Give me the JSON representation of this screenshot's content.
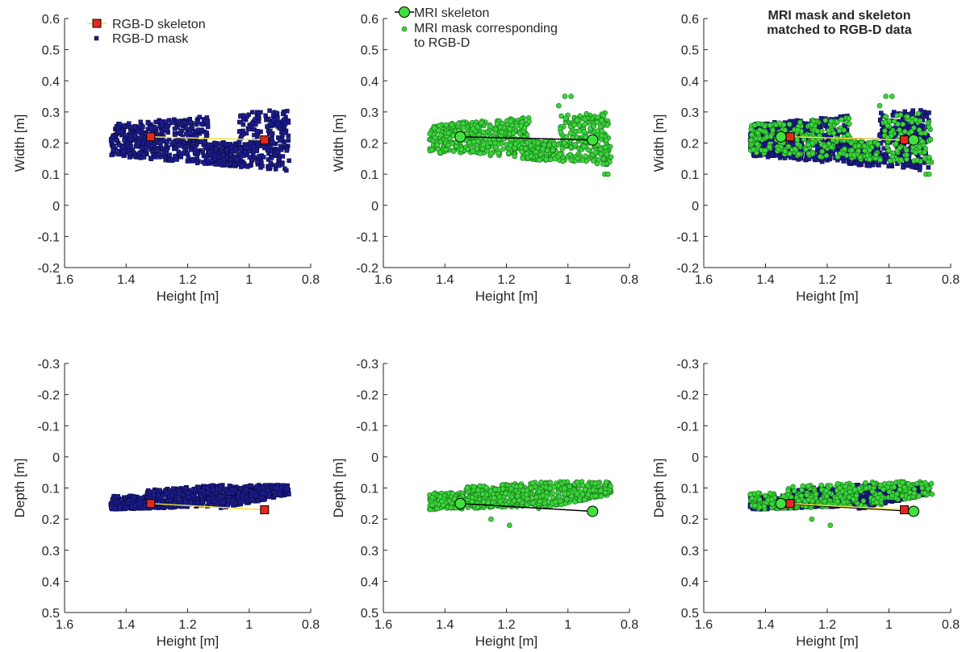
{
  "colors": {
    "mask_rgbd": "#1c1c8e",
    "mask_rgbd_edge": "#0b0b3a",
    "mask_mri": "#39d63a",
    "mask_mri_edge": "#1b6b1b",
    "skeleton_rgbd_marker": "#e8271c",
    "skeleton_rgbd_line": "#f2e23a",
    "skeleton_mri_marker": "#3ee23e",
    "skeleton_mri_line": "#000000"
  },
  "chart_data": [
    {
      "type": "scatter",
      "title": "",
      "xlabel": "Height [m]",
      "ylabel": "Width [m]",
      "xlim": [
        1.6,
        0.8
      ],
      "ylim": [
        0.6,
        -0.2
      ],
      "xticks": [
        "1.6",
        "1.4",
        "1.2",
        "1",
        "0.8"
      ],
      "yticks": [
        "-0.2",
        "-0.1",
        "0",
        "0.1",
        "0.2",
        "0.3",
        "0.4",
        "0.5",
        "0.6"
      ],
      "legend": {
        "position": "top-left",
        "entries": [
          "RGB-D skeleton",
          "RGB-D mask"
        ]
      },
      "series": [
        {
          "name": "RGB-D mask",
          "kind": "rgbd_mask",
          "region": {
            "x_range": [
              1.45,
              0.87
            ],
            "top_left": 0.16,
            "top_right": 0.11,
            "bottom_left": 0.26,
            "bottom_right": 0.31
          }
        },
        {
          "name": "RGB-D skeleton",
          "kind": "rgbd_skeleton",
          "x": [
            1.32,
            0.95
          ],
          "y": [
            0.22,
            0.21
          ]
        }
      ]
    },
    {
      "type": "scatter",
      "title": "",
      "xlabel": "Height [m]",
      "ylabel": "Width [m]",
      "xlim": [
        1.6,
        0.8
      ],
      "ylim": [
        0.6,
        -0.2
      ],
      "xticks": [
        "1.6",
        "1.4",
        "1.2",
        "1",
        "0.8"
      ],
      "yticks": [
        "-0.2",
        "-0.1",
        "0",
        "0.1",
        "0.2",
        "0.3",
        "0.4",
        "0.5",
        "0.6"
      ],
      "legend": {
        "position": "top-left",
        "entries": [
          "MRI skeleton",
          "MRI mask corresponding to RGB-D"
        ]
      },
      "series": [
        {
          "name": "MRI mask corresponding to RGB-D",
          "kind": "mri_mask",
          "region": {
            "x_range": [
              1.45,
              0.86
            ],
            "top_left": 0.17,
            "top_right": 0.13,
            "bottom_left": 0.26,
            "bottom_right": 0.3
          }
        },
        {
          "name": "MRI skeleton",
          "kind": "mri_skeleton",
          "x": [
            1.35,
            0.92
          ],
          "y": [
            0.22,
            0.21
          ]
        }
      ]
    },
    {
      "type": "scatter",
      "title": "MRI mask and skeleton matched to RGB-D data",
      "xlabel": "Height [m]",
      "ylabel": "Width [m]",
      "xlim": [
        1.6,
        0.8
      ],
      "ylim": [
        0.6,
        -0.2
      ],
      "xticks": [
        "1.6",
        "1.4",
        "1.2",
        "1",
        "0.8"
      ],
      "yticks": [
        "-0.2",
        "-0.1",
        "0",
        "0.1",
        "0.2",
        "0.3",
        "0.4",
        "0.5",
        "0.6"
      ],
      "legend": null,
      "series": [
        {
          "name": "RGB-D mask",
          "kind": "rgbd_mask",
          "region": {
            "x_range": [
              1.45,
              0.87
            ],
            "top_left": 0.16,
            "top_right": 0.11,
            "bottom_left": 0.26,
            "bottom_right": 0.31
          }
        },
        {
          "name": "MRI mask corresponding to RGB-D",
          "kind": "mri_mask_sparse",
          "region": {
            "x_range": [
              1.45,
              0.86
            ],
            "top_left": 0.17,
            "top_right": 0.13,
            "bottom_left": 0.26,
            "bottom_right": 0.3
          }
        },
        {
          "name": "MRI skeleton",
          "kind": "mri_skeleton",
          "x": [
            1.35,
            0.92
          ],
          "y": [
            0.22,
            0.21
          ]
        },
        {
          "name": "RGB-D skeleton",
          "kind": "rgbd_skeleton",
          "x": [
            1.32,
            0.95
          ],
          "y": [
            0.22,
            0.21
          ]
        }
      ]
    },
    {
      "type": "scatter",
      "title": "",
      "xlabel": "Height [m]",
      "ylabel": "Depth [m]",
      "xlim": [
        1.6,
        0.8
      ],
      "ylim": [
        -0.3,
        0.5
      ],
      "xticks": [
        "1.6",
        "1.4",
        "1.2",
        "1",
        "0.8"
      ],
      "yticks": [
        "0.5",
        "0.4",
        "0.3",
        "0.2",
        "0.1",
        "0",
        "-0.1",
        "-0.2",
        "-0.3"
      ],
      "legend": null,
      "series": [
        {
          "name": "RGB-D mask",
          "kind": "rgbd_mask",
          "region": {
            "x_range": [
              1.45,
              0.87
            ],
            "bottom": 0.09,
            "top_left": 0.17,
            "top_mid": 0.17,
            "top_right": 0.12
          }
        },
        {
          "name": "RGB-D skeleton",
          "kind": "rgbd_skeleton",
          "x": [
            1.32,
            0.95
          ],
          "y": [
            0.15,
            0.17
          ]
        }
      ]
    },
    {
      "type": "scatter",
      "title": "",
      "xlabel": "Height [m]",
      "ylabel": "Depth [m]",
      "xlim": [
        1.6,
        0.8
      ],
      "ylim": [
        -0.3,
        0.5
      ],
      "xticks": [
        "1.6",
        "1.4",
        "1.2",
        "1",
        "0.8"
      ],
      "yticks": [
        "0.5",
        "0.4",
        "0.3",
        "0.2",
        "0.1",
        "0",
        "-0.1",
        "-0.2",
        "-0.3"
      ],
      "legend": null,
      "series": [
        {
          "name": "MRI mask corresponding to RGB-D",
          "kind": "mri_mask",
          "region": {
            "x_range": [
              1.45,
              0.86
            ],
            "bottom": 0.08,
            "top_left": 0.17,
            "top_mid": 0.17,
            "top_right": 0.12
          }
        },
        {
          "name": "MRI skeleton",
          "kind": "mri_skeleton",
          "x": [
            1.35,
            0.92
          ],
          "y": [
            0.15,
            0.175
          ]
        }
      ]
    },
    {
      "type": "scatter",
      "title": "",
      "xlabel": "Height [m]",
      "ylabel": "Depth [m]",
      "xlim": [
        1.6,
        0.8
      ],
      "ylim": [
        -0.3,
        0.5
      ],
      "xticks": [
        "1.6",
        "1.4",
        "1.2",
        "1",
        "0.8"
      ],
      "yticks": [
        "0.5",
        "0.4",
        "0.3",
        "0.2",
        "0.1",
        "0",
        "-0.1",
        "-0.2",
        "-0.3"
      ],
      "legend": null,
      "series": [
        {
          "name": "RGB-D mask",
          "kind": "rgbd_mask",
          "region": {
            "x_range": [
              1.45,
              0.87
            ],
            "bottom": 0.09,
            "top_left": 0.17,
            "top_mid": 0.17,
            "top_right": 0.12
          }
        },
        {
          "name": "MRI mask corresponding to RGB-D",
          "kind": "mri_mask_sparse",
          "region": {
            "x_range": [
              1.45,
              0.86
            ],
            "bottom": 0.08,
            "top_left": 0.17,
            "top_mid": 0.17,
            "top_right": 0.12
          }
        },
        {
          "name": "MRI skeleton",
          "kind": "mri_skeleton",
          "x": [
            1.35,
            0.92
          ],
          "y": [
            0.15,
            0.175
          ]
        },
        {
          "name": "RGB-D skeleton",
          "kind": "rgbd_skeleton",
          "x": [
            1.32,
            0.95
          ],
          "y": [
            0.15,
            0.17
          ]
        }
      ]
    }
  ]
}
